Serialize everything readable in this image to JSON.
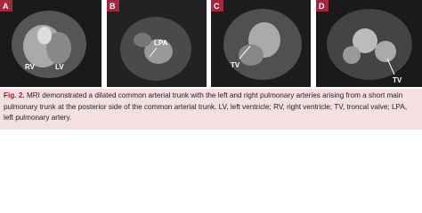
{
  "figure": {
    "panels": [
      {
        "label": "A",
        "annotations": [
          "RV",
          "LV"
        ]
      },
      {
        "label": "B",
        "annotations": [
          "LPA"
        ]
      },
      {
        "label": "C",
        "annotations": [
          "TV"
        ]
      },
      {
        "label": "D",
        "annotations": [
          "TV"
        ]
      }
    ],
    "caption": {
      "label": "Fig. 2.",
      "text": "MRI demonstrated a dilated common arterial trunk with the left and right pulmonary arteries arising from a short main pulmonary trunk at the posterior side of the common arterial trunk. LV, left ventricle; RV, right ventricle; TV, troncal valve; LPA, left pulmonary artery."
    }
  }
}
